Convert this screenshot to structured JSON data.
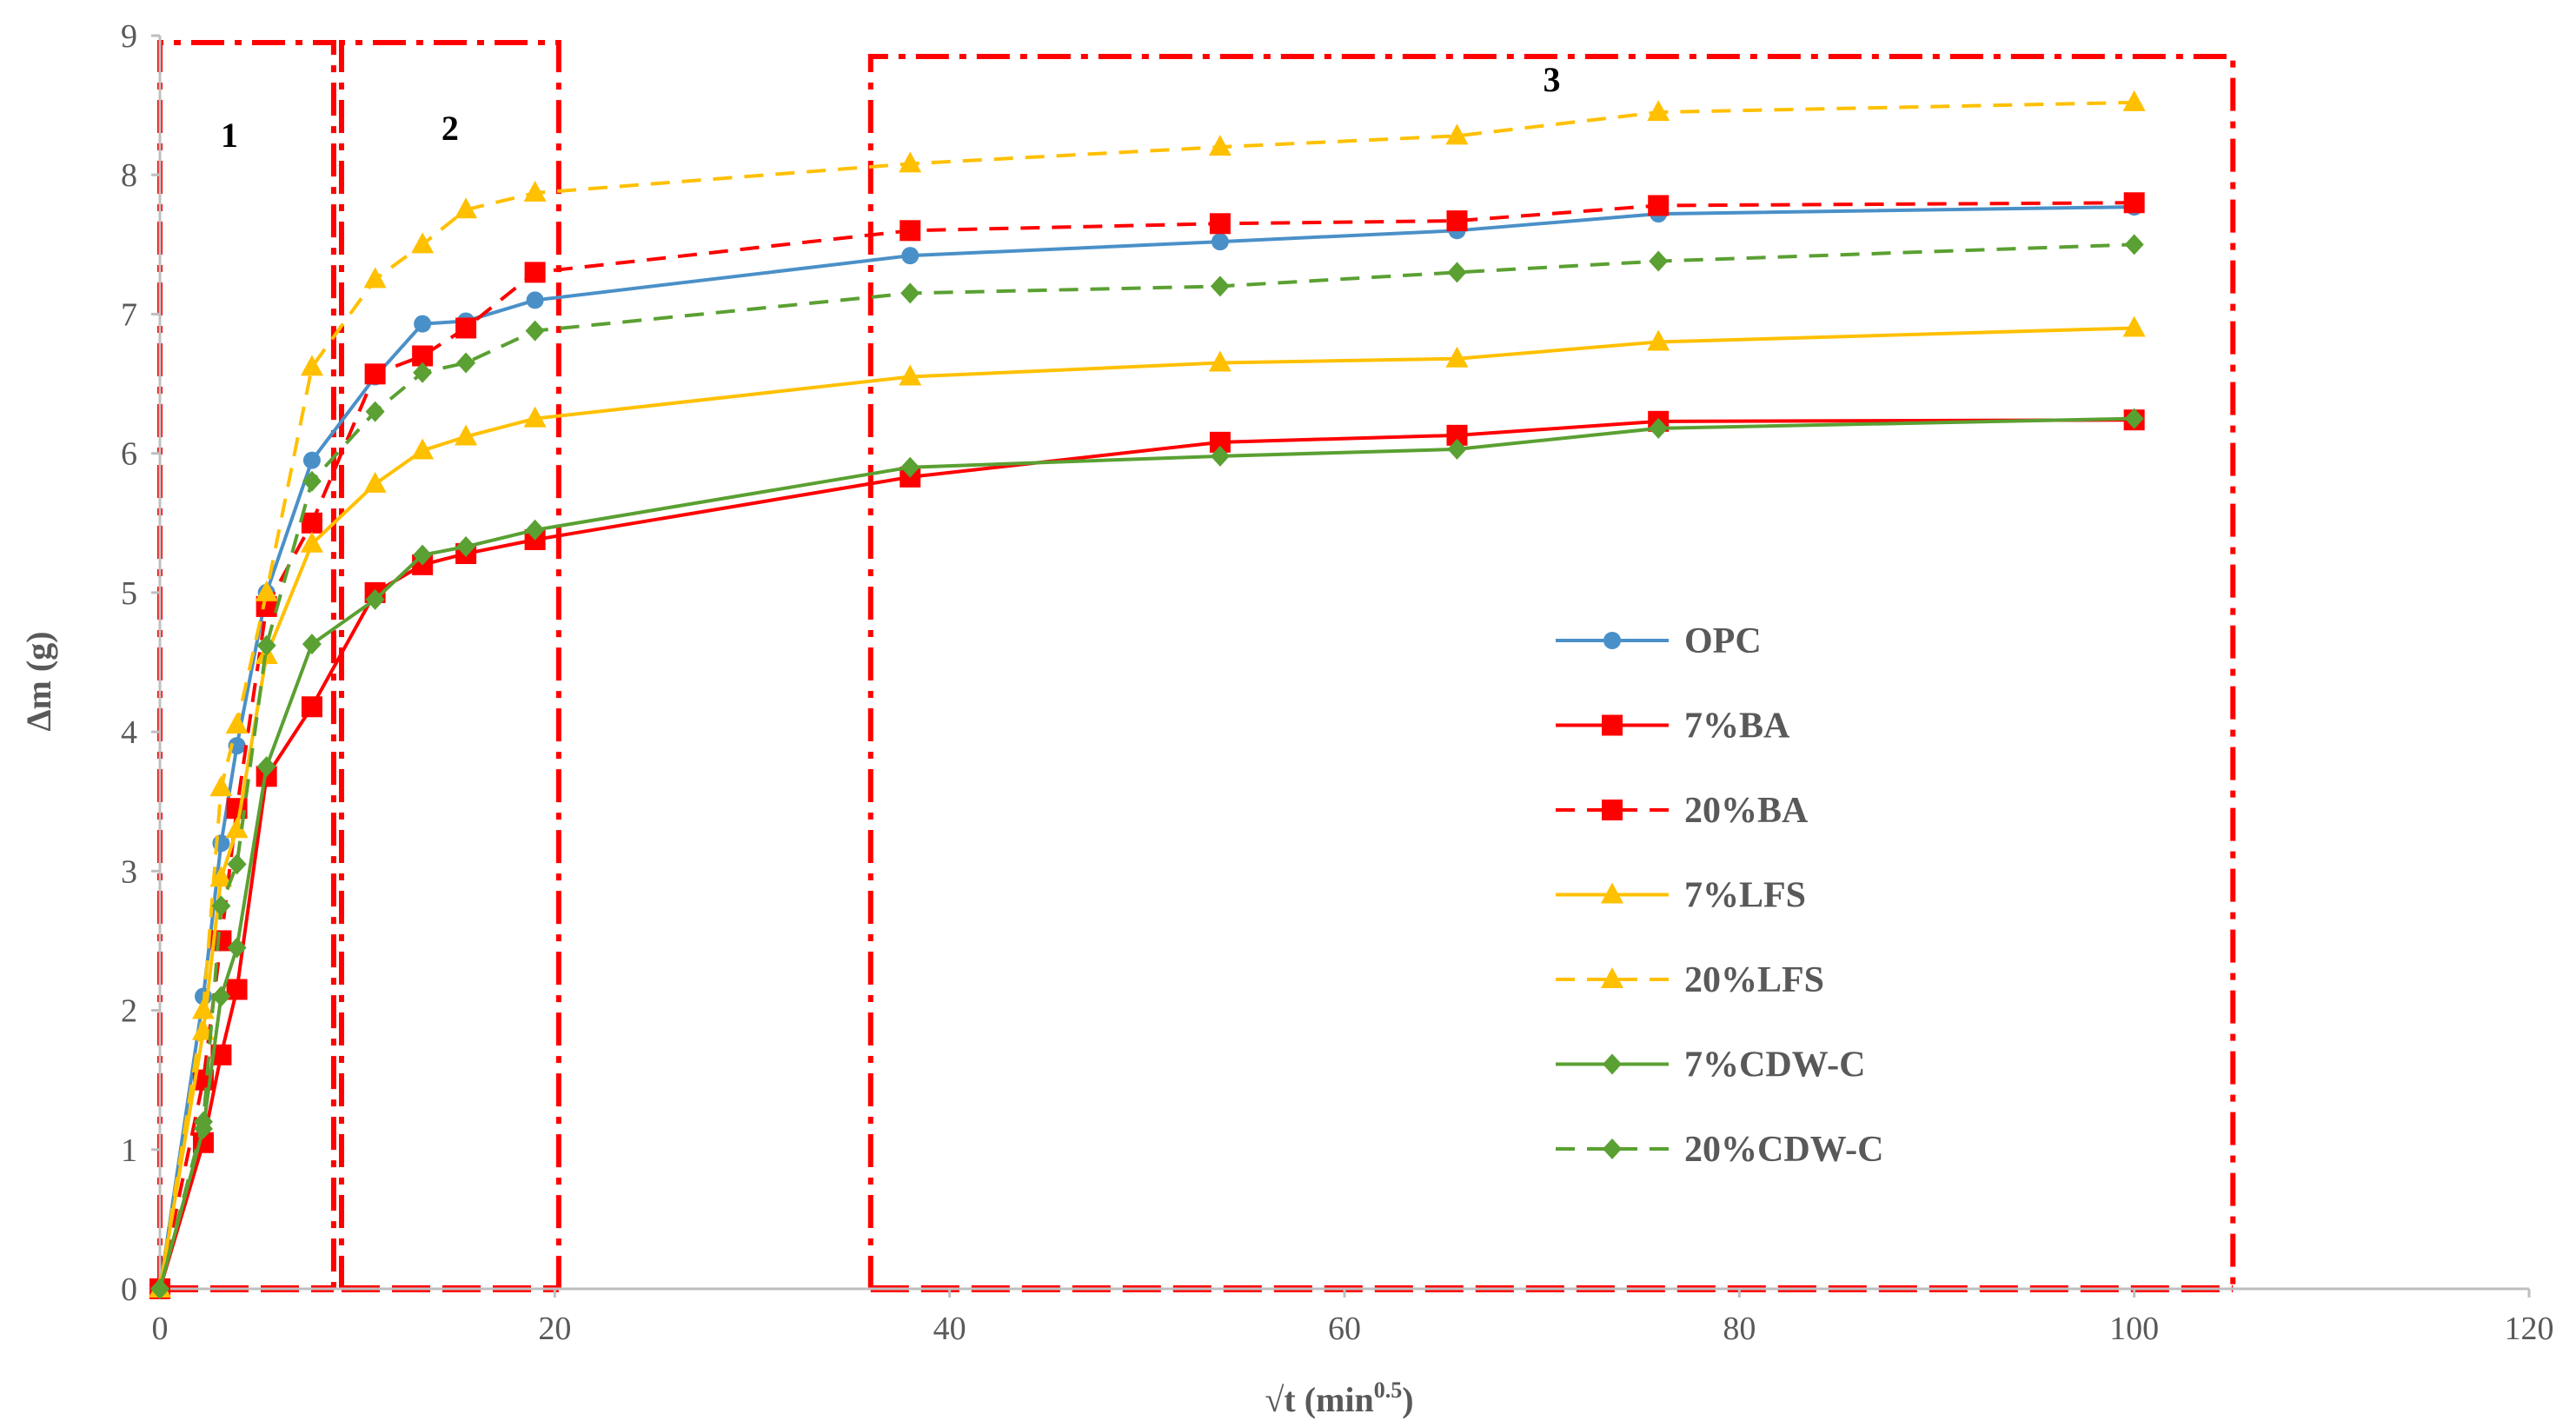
{
  "chart_data": {
    "type": "line",
    "xlabel": "√t (min",
    "xlabel_sup": "0.5",
    "xlabel_close": ")",
    "ylabel": "Δm (g)",
    "xlim": [
      0,
      120
    ],
    "ylim": [
      0,
      9
    ],
    "xticks": [
      "0",
      "20",
      "40",
      "60",
      "80",
      "100",
      "120"
    ],
    "yticks": [
      "0",
      "1",
      "2",
      "3",
      "4",
      "5",
      "6",
      "7",
      "8",
      "9"
    ],
    "grid": false,
    "legend_position": "center-right",
    "regions": [
      {
        "label": "1",
        "x_range": [
          0,
          8.8
        ]
      },
      {
        "label": "2",
        "x_range": [
          9.2,
          20.2
        ]
      },
      {
        "label": "3",
        "x_range": [
          36,
          105
        ]
      }
    ],
    "series": [
      {
        "name": "OPC",
        "color": "#4a90c8",
        "dash": "solid",
        "marker": "circle",
        "x": [
          0,
          2.2,
          3.1,
          3.9,
          5.4,
          7.7,
          10.9,
          13.3,
          15.5,
          19,
          38,
          53.7,
          65.7,
          75.9,
          100
        ],
        "y": [
          0,
          2.1,
          3.2,
          3.9,
          5.0,
          5.95,
          6.55,
          6.93,
          6.95,
          7.1,
          7.42,
          7.52,
          7.6,
          7.72,
          7.77
        ]
      },
      {
        "name": "7%BA",
        "color": "#ff0000",
        "dash": "solid",
        "marker": "square",
        "x": [
          0,
          2.2,
          3.1,
          3.9,
          5.4,
          7.7,
          10.9,
          13.3,
          15.5,
          19,
          38,
          53.7,
          65.7,
          75.9,
          100
        ],
        "y": [
          0,
          1.05,
          1.68,
          2.15,
          3.68,
          4.18,
          5.0,
          5.2,
          5.28,
          5.38,
          5.83,
          6.08,
          6.13,
          6.23,
          6.24
        ]
      },
      {
        "name": "20%BA",
        "color": "#ff0000",
        "dash": "dashed",
        "marker": "square",
        "x": [
          0,
          2.2,
          3.1,
          3.9,
          5.4,
          7.7,
          10.9,
          13.3,
          15.5,
          19,
          38,
          53.7,
          65.7,
          75.9,
          100
        ],
        "y": [
          0,
          1.5,
          2.5,
          3.45,
          4.9,
          5.5,
          6.57,
          6.7,
          6.9,
          7.3,
          7.6,
          7.65,
          7.67,
          7.78,
          7.8
        ]
      },
      {
        "name": "7%LFS",
        "color": "#ffc000",
        "dash": "solid",
        "marker": "triangle",
        "x": [
          0,
          2.2,
          3.1,
          3.9,
          5.4,
          7.7,
          10.9,
          13.3,
          15.5,
          19,
          38,
          53.7,
          65.7,
          75.9,
          100
        ],
        "y": [
          0,
          1.85,
          2.95,
          3.3,
          4.55,
          5.35,
          5.78,
          6.02,
          6.12,
          6.25,
          6.55,
          6.65,
          6.68,
          6.8,
          6.9
        ]
      },
      {
        "name": "20%LFS",
        "color": "#ffc000",
        "dash": "dashed",
        "marker": "triangle",
        "x": [
          0,
          2.2,
          3.1,
          3.9,
          5.4,
          7.7,
          10.9,
          13.3,
          15.5,
          19,
          38,
          53.7,
          65.7,
          75.9,
          100
        ],
        "y": [
          0,
          2.0,
          3.6,
          4.05,
          5.0,
          6.62,
          7.25,
          7.5,
          7.75,
          7.87,
          8.08,
          8.2,
          8.28,
          8.45,
          8.52
        ]
      },
      {
        "name": "7%CDW-C",
        "color": "#5aa032",
        "dash": "solid",
        "marker": "diamond",
        "x": [
          0,
          2.2,
          3.1,
          3.9,
          5.4,
          7.7,
          10.9,
          13.3,
          15.5,
          19,
          38,
          53.7,
          65.7,
          75.9,
          100
        ],
        "y": [
          0,
          1.15,
          2.1,
          2.45,
          3.75,
          4.63,
          4.95,
          5.27,
          5.33,
          5.45,
          5.9,
          5.98,
          6.03,
          6.18,
          6.25
        ]
      },
      {
        "name": "20%CDW-C",
        "color": "#5aa032",
        "dash": "dashed",
        "marker": "diamond",
        "x": [
          0,
          2.2,
          3.1,
          3.9,
          5.4,
          7.7,
          10.9,
          13.3,
          15.5,
          19,
          38,
          53.7,
          65.7,
          75.9,
          100
        ],
        "y": [
          0,
          1.2,
          2.75,
          3.05,
          4.62,
          5.8,
          6.3,
          6.58,
          6.65,
          6.88,
          7.15,
          7.2,
          7.3,
          7.38,
          7.5
        ]
      }
    ]
  }
}
